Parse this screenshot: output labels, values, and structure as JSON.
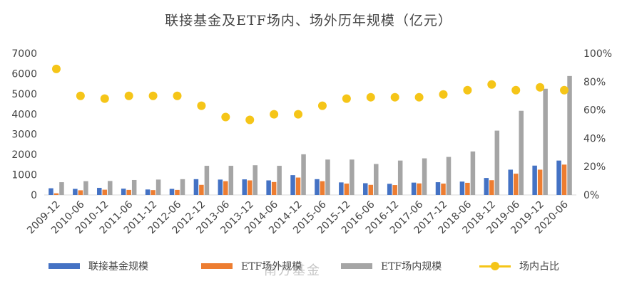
{
  "chart_data": {
    "type": "bar",
    "title": "联接基金及ETF场内、场外历年规模（亿元）",
    "categories": [
      "2009-12",
      "2010-06",
      "2010-12",
      "2011-06",
      "2011-12",
      "2012-06",
      "2012-12",
      "2013-06",
      "2013-12",
      "2014-06",
      "2014-12",
      "2015-06",
      "2015-12",
      "2016-06",
      "2016-12",
      "2017-06",
      "2017-12",
      "2018-06",
      "2018-12",
      "2019-06",
      "2019-12",
      "2020-06"
    ],
    "x_tick_labels": [
      "2009-12",
      "2010-06",
      "2010-12",
      "2011-06",
      "2011-12",
      "2012-06",
      "2012-12",
      "2013-06",
      "2013-12",
      "2014-06",
      "2014-12",
      "2015-06",
      "2015-12",
      "2016-06",
      "2016-12",
      "2017-06",
      "2017-12",
      "2018-06",
      "2018-12",
      "2019-06",
      "2019-12",
      "2020-06"
    ],
    "ylim": [
      0,
      7000
    ],
    "y_ticks": [
      0,
      1000,
      2000,
      3000,
      4000,
      5000,
      6000,
      7000
    ],
    "y2lim": [
      0,
      100
    ],
    "y2_ticks": [
      "0%",
      "20%",
      "40%",
      "60%",
      "80%",
      "100%"
    ],
    "series": [
      {
        "name": "联接基金规模",
        "type": "bar",
        "color": "#4472c4",
        "values": [
          330,
          300,
          350,
          310,
          270,
          300,
          780,
          760,
          770,
          720,
          980,
          780,
          620,
          580,
          550,
          610,
          630,
          660,
          840,
          1250,
          1450,
          1700
        ]
      },
      {
        "name": "ETF场外规模",
        "type": "bar",
        "color": "#ed7d31",
        "values": [
          80,
          230,
          260,
          250,
          240,
          250,
          500,
          680,
          720,
          640,
          860,
          680,
          560,
          500,
          490,
          570,
          560,
          600,
          730,
          1050,
          1250,
          1500
        ]
      },
      {
        "name": "ETF场内规模",
        "type": "bar",
        "color": "#a5a5a5",
        "values": [
          630,
          680,
          690,
          740,
          760,
          780,
          1440,
          1440,
          1470,
          1440,
          2010,
          1750,
          1750,
          1530,
          1700,
          1810,
          1880,
          2150,
          3180,
          4160,
          5250,
          5880
        ]
      },
      {
        "name": "场内占比",
        "type": "line",
        "axis": "right",
        "color": "#f5c518",
        "values": [
          89,
          70,
          68,
          70,
          70,
          70,
          63,
          55,
          53,
          57,
          57,
          63,
          68,
          69,
          69,
          69,
          71,
          74,
          78,
          74,
          76,
          74
        ]
      }
    ]
  },
  "watermark": "南方基金"
}
